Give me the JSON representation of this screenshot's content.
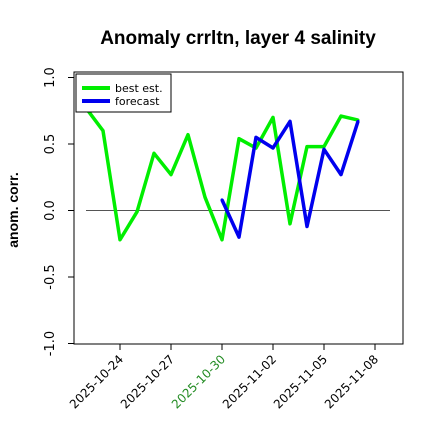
{
  "chart_data": {
    "type": "line",
    "title": "Anomaly crrltn, layer 4 salinity",
    "xlabel": "",
    "ylabel": "anom. corr.",
    "ylim": [
      -1.0,
      1.0
    ],
    "yticks": [
      "-1.0",
      "-0.5",
      "0.0",
      "0.5",
      "1.0"
    ],
    "ytick_values": [
      -1.0,
      -0.5,
      0.0,
      0.5,
      1.0
    ],
    "xticks": [
      "2025-10-24",
      "2025-10-27",
      "2025-10-30",
      "2025-11-02",
      "2025-11-05",
      "2025-11-08"
    ],
    "xtick_days": [
      3,
      6,
      9,
      12,
      15,
      18
    ],
    "xtick_colors": [
      "#000000",
      "#000000",
      "#228B22",
      "#000000",
      "#000000",
      "#000000"
    ],
    "reference_line": 0.0,
    "grid": false,
    "legend_position": "top-left",
    "series": [
      {
        "name": "best est.",
        "color": "#00ee00",
        "x": [
          1,
          2,
          3,
          4,
          5,
          6,
          7,
          8,
          9,
          10,
          11,
          12,
          13,
          14,
          15,
          16,
          17,
          18
        ],
        "values": [
          0.77,
          0.6,
          -0.22,
          -0.01,
          0.43,
          0.27,
          0.57,
          0.1,
          -0.22,
          0.54,
          0.47,
          0.7,
          -0.1,
          0.48,
          0.48,
          0.71,
          0.68,
          null
        ]
      },
      {
        "name": "forecast",
        "color": "#0000ee",
        "x": [
          9,
          10,
          11,
          12,
          13,
          14,
          15,
          16,
          17
        ],
        "values": [
          0.08,
          -0.2,
          0.55,
          0.47,
          0.67,
          -0.12,
          0.46,
          0.27,
          0.67
        ]
      }
    ]
  }
}
